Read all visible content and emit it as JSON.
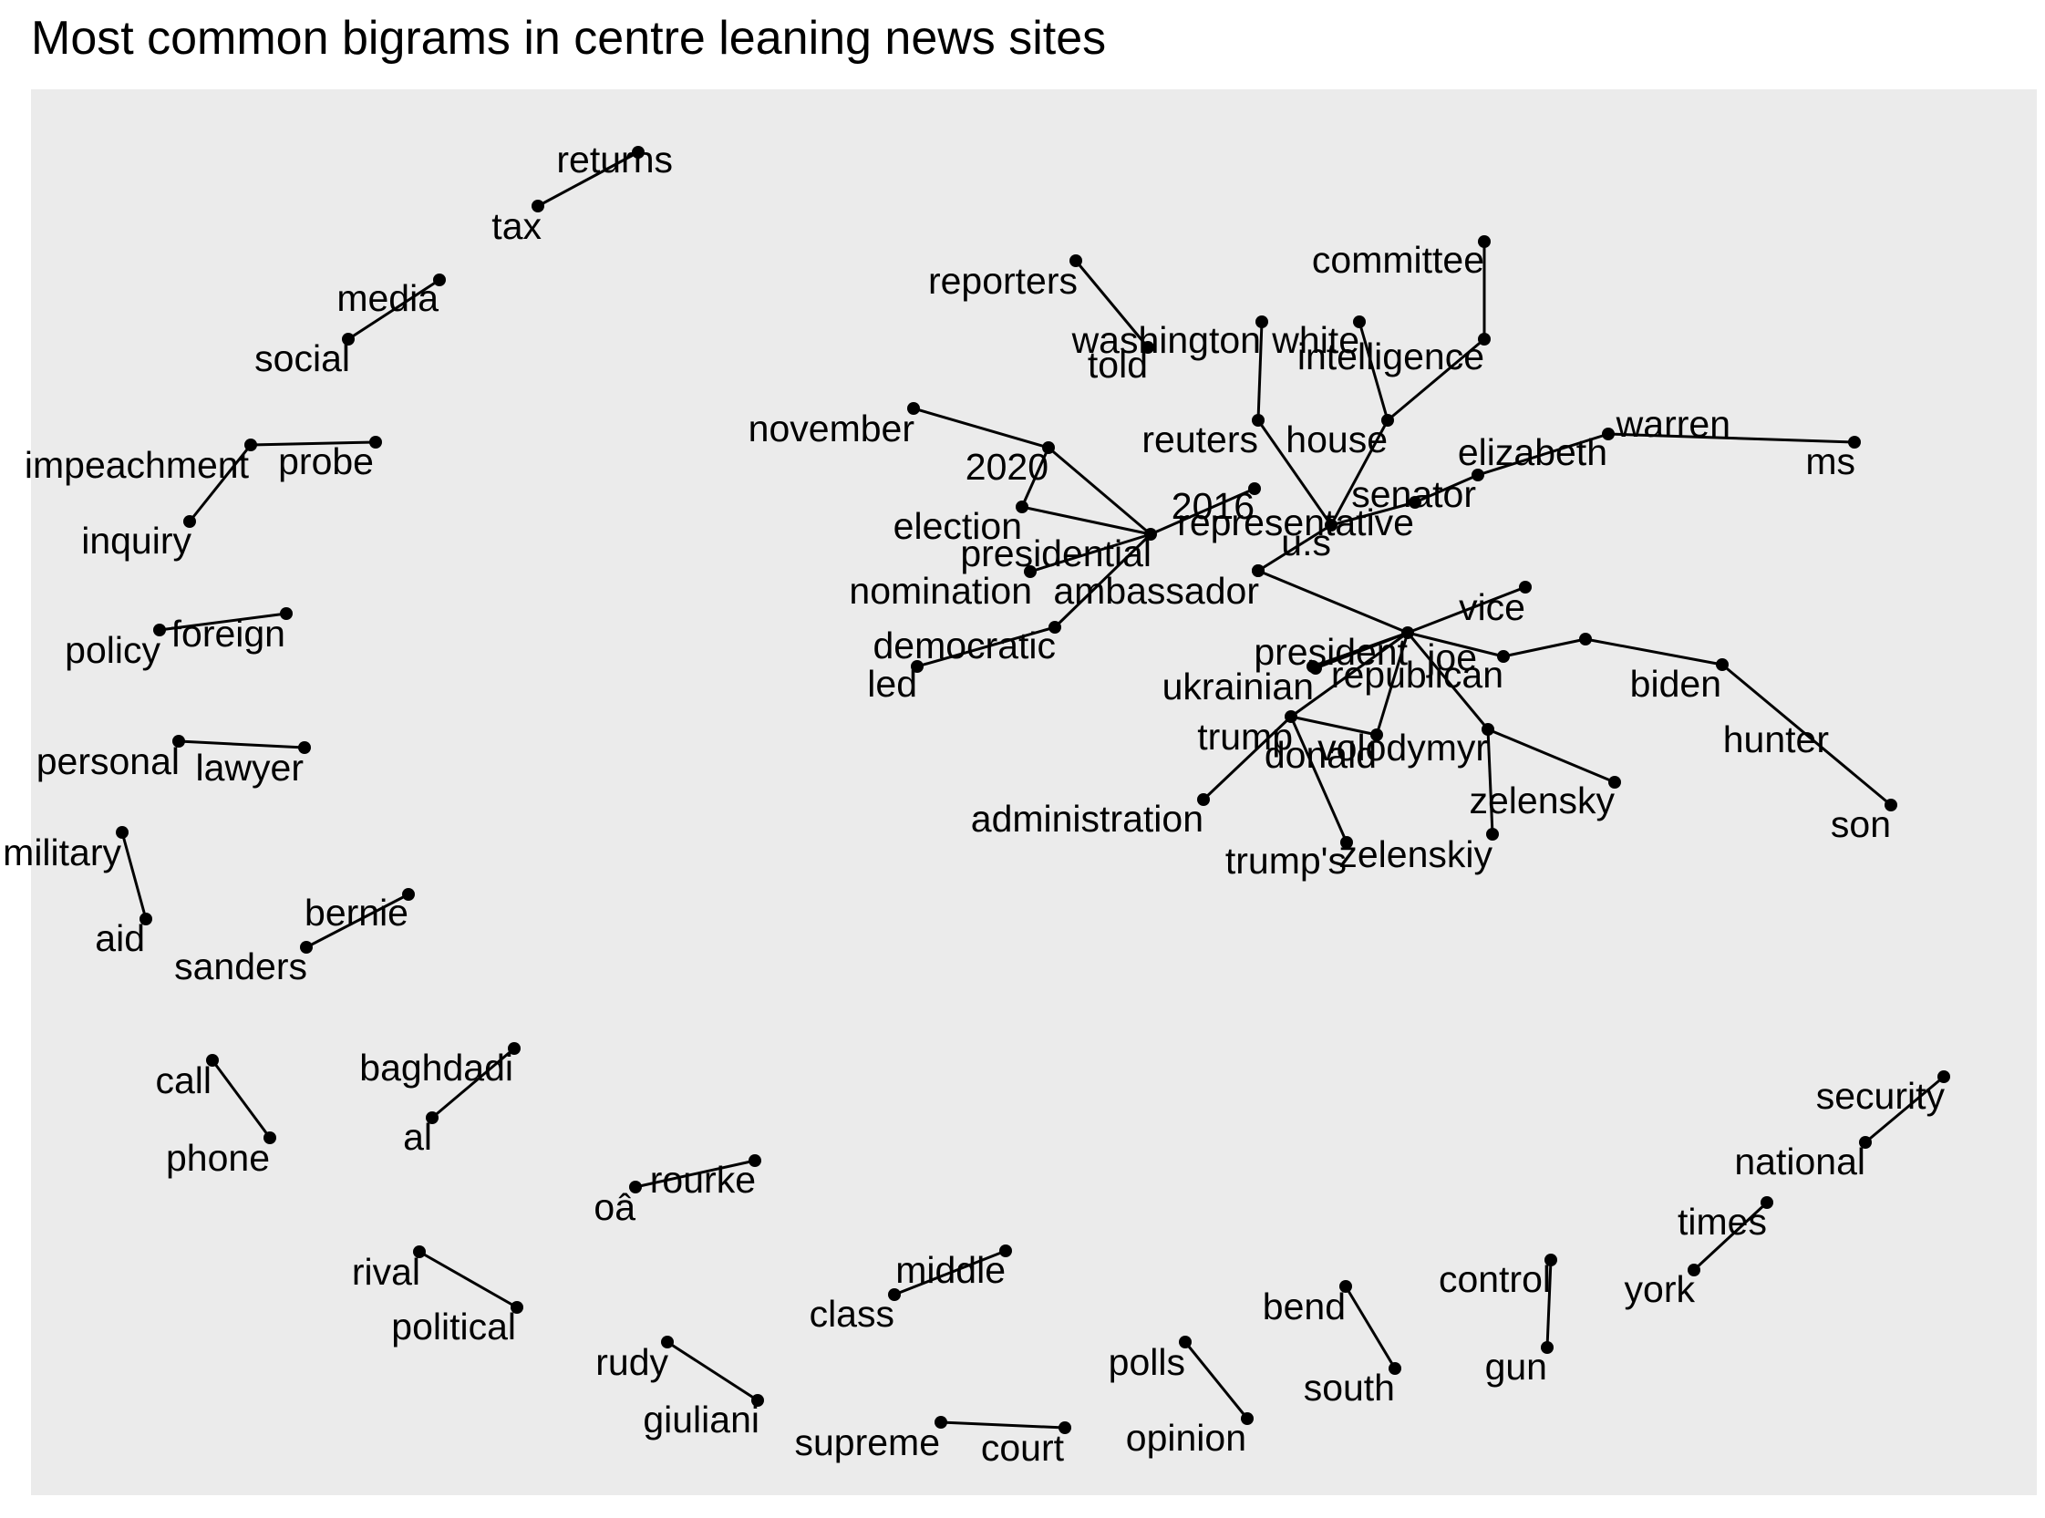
{
  "chart_data": {
    "type": "network",
    "title": "Most common bigrams in centre leaning news sites",
    "colors": {
      "panel_background": "#ebebeb",
      "edge": "#000000",
      "node": "#000000",
      "text": "#000000"
    },
    "nodes": [
      {
        "id": "returns"
      },
      {
        "id": "tax"
      },
      {
        "id": "media"
      },
      {
        "id": "social"
      },
      {
        "id": "impeachment"
      },
      {
        "id": "probe"
      },
      {
        "id": "inquiry"
      },
      {
        "id": "policy"
      },
      {
        "id": "foreign"
      },
      {
        "id": "personal"
      },
      {
        "id": "lawyer"
      },
      {
        "id": "military"
      },
      {
        "id": "aid"
      },
      {
        "id": "bernie"
      },
      {
        "id": "sanders"
      },
      {
        "id": "call"
      },
      {
        "id": "phone"
      },
      {
        "id": "baghdadi"
      },
      {
        "id": "al"
      },
      {
        "id": "oâ"
      },
      {
        "id": "rourke"
      },
      {
        "id": "rival"
      },
      {
        "id": "political"
      },
      {
        "id": "middle"
      },
      {
        "id": "class"
      },
      {
        "id": "rudy"
      },
      {
        "id": "giuliani"
      },
      {
        "id": "supreme"
      },
      {
        "id": "court"
      },
      {
        "id": "polls"
      },
      {
        "id": "opinion"
      },
      {
        "id": "bend"
      },
      {
        "id": "south"
      },
      {
        "id": "control"
      },
      {
        "id": "gun"
      },
      {
        "id": "times"
      },
      {
        "id": "york"
      },
      {
        "id": "security"
      },
      {
        "id": "national"
      },
      {
        "id": "reporters"
      },
      {
        "id": "told"
      },
      {
        "id": "washington"
      },
      {
        "id": "white"
      },
      {
        "id": "committee"
      },
      {
        "id": "intelligence"
      },
      {
        "id": "reuters"
      },
      {
        "id": "house"
      },
      {
        "id": "november"
      },
      {
        "id": "2020"
      },
      {
        "id": "election"
      },
      {
        "id": "presidential"
      },
      {
        "id": "2016"
      },
      {
        "id": "representative"
      },
      {
        "id": "u.s"
      },
      {
        "id": "senator"
      },
      {
        "id": "elizabeth"
      },
      {
        "id": "warren"
      },
      {
        "id": "ms"
      },
      {
        "id": "nomination"
      },
      {
        "id": "ambassador"
      },
      {
        "id": "democratic"
      },
      {
        "id": "led"
      },
      {
        "id": "vice"
      },
      {
        "id": "president"
      },
      {
        "id": "joe"
      },
      {
        "id": "biden"
      },
      {
        "id": "hunter"
      },
      {
        "id": "son"
      },
      {
        "id": "republican"
      },
      {
        "id": "ukrainian"
      },
      {
        "id": "trump"
      },
      {
        "id": "donald"
      },
      {
        "id": "volodymyr"
      },
      {
        "id": "zelensky"
      },
      {
        "id": "zelenskiy"
      },
      {
        "id": "trump's"
      },
      {
        "id": "administration"
      }
    ],
    "edges": [
      [
        "tax",
        "returns"
      ],
      [
        "social",
        "media"
      ],
      [
        "impeachment",
        "probe"
      ],
      [
        "impeachment",
        "inquiry"
      ],
      [
        "foreign",
        "policy"
      ],
      [
        "personal",
        "lawyer"
      ],
      [
        "military",
        "aid"
      ],
      [
        "bernie",
        "sanders"
      ],
      [
        "phone",
        "call"
      ],
      [
        "al",
        "baghdadi"
      ],
      [
        "oâ",
        "rourke"
      ],
      [
        "political",
        "rival"
      ],
      [
        "middle",
        "class"
      ],
      [
        "rudy",
        "giuliani"
      ],
      [
        "supreme",
        "court"
      ],
      [
        "opinion",
        "polls"
      ],
      [
        "south",
        "bend"
      ],
      [
        "gun",
        "control"
      ],
      [
        "york",
        "times"
      ],
      [
        "national",
        "security"
      ],
      [
        "reporters",
        "told"
      ],
      [
        "washington",
        "reuters"
      ],
      [
        "white",
        "house"
      ],
      [
        "intelligence",
        "committee"
      ],
      [
        "house",
        "intelligence"
      ],
      [
        "reuters",
        "representative"
      ],
      [
        "house",
        "representative"
      ],
      [
        "november",
        "2020"
      ],
      [
        "2020",
        "election"
      ],
      [
        "2020",
        "presidential"
      ],
      [
        "election",
        "presidential"
      ],
      [
        "presidential",
        "nomination"
      ],
      [
        "2016",
        "presidential"
      ],
      [
        "u.s",
        "representative"
      ],
      [
        "representative",
        "senator"
      ],
      [
        "senator",
        "elizabeth"
      ],
      [
        "elizabeth",
        "warren"
      ],
      [
        "warren",
        "ms"
      ],
      [
        "u.s",
        "ambassador"
      ],
      [
        "democratic",
        "led"
      ],
      [
        "democratic",
        "presidential"
      ],
      [
        "u.s",
        "president"
      ],
      [
        "vice",
        "president"
      ],
      [
        "president",
        "joe"
      ],
      [
        "joe",
        "biden"
      ],
      [
        "biden",
        "hunter"
      ],
      [
        "hunter",
        "son"
      ],
      [
        "republican",
        "president"
      ],
      [
        "ukrainian",
        "president"
      ],
      [
        "president",
        "trump"
      ],
      [
        "president",
        "donald"
      ],
      [
        "president",
        "volodymyr"
      ],
      [
        "volodymyr",
        "zelensky"
      ],
      [
        "volodymyr",
        "zelenskiy"
      ],
      [
        "donald",
        "trump"
      ],
      [
        "trump's",
        "trump"
      ],
      [
        "trump",
        "administration"
      ]
    ]
  }
}
